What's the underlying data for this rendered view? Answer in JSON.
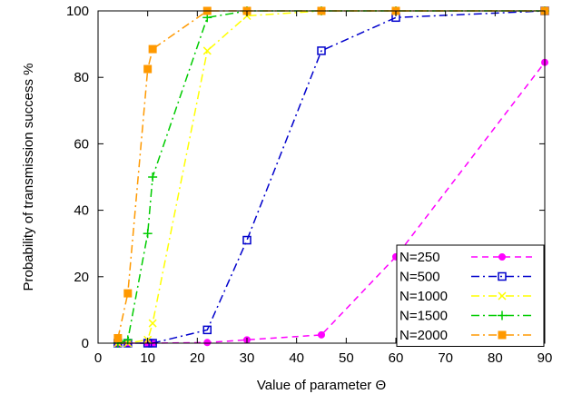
{
  "chart_data": {
    "type": "line",
    "title": "",
    "xlabel": "Value of parameter Θ",
    "ylabel": "Probability of transmission success %",
    "xlim": [
      0,
      90
    ],
    "ylim": [
      0,
      100
    ],
    "xticks": [
      "0",
      "10",
      "20",
      "30",
      "40",
      "50",
      "60",
      "70",
      "80",
      "90"
    ],
    "yticks": [
      "0",
      "20",
      "40",
      "60",
      "80",
      "100"
    ],
    "grid": false,
    "legend_position": "bottom-right",
    "series": [
      {
        "name": "N=250",
        "color": "#ff00ff",
        "marker": "filled-circle",
        "dash": "dashed",
        "x": [
          4,
          6,
          10,
          11,
          22,
          30,
          45,
          60,
          90
        ],
        "y": [
          0,
          0,
          0,
          0,
          0.2,
          1,
          2.5,
          26,
          84.5
        ]
      },
      {
        "name": "N=500",
        "color": "#0000cc",
        "marker": "open-square",
        "dash": "dash-dot",
        "x": [
          4,
          6,
          10,
          11,
          22,
          30,
          45,
          60,
          90
        ],
        "y": [
          0,
          0,
          0,
          0,
          4,
          31,
          88,
          98,
          100
        ]
      },
      {
        "name": "N=1000",
        "color": "#ffff00",
        "marker": "x",
        "dash": "dash-dot",
        "x": [
          4,
          6,
          10,
          11,
          22,
          30,
          45,
          60,
          90
        ],
        "y": [
          0,
          0,
          1,
          6,
          88,
          98.5,
          100,
          100,
          100
        ]
      },
      {
        "name": "N=1500",
        "color": "#00cc00",
        "marker": "plus",
        "dash": "dash-dot",
        "x": [
          4,
          6,
          10,
          11,
          22,
          30,
          45,
          60,
          90
        ],
        "y": [
          0,
          1,
          33,
          50,
          98,
          100,
          100,
          100,
          100
        ]
      },
      {
        "name": "N=2000",
        "color": "#ff9900",
        "marker": "filled-square",
        "dash": "dash-dot",
        "x": [
          4,
          6,
          10,
          11,
          22,
          30,
          45,
          60,
          90
        ],
        "y": [
          1.5,
          15,
          82.5,
          88.5,
          100,
          100,
          100,
          100,
          100
        ]
      }
    ]
  }
}
